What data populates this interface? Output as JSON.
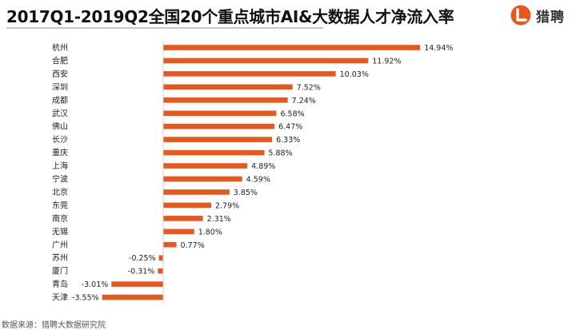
{
  "header": {
    "title": "2017Q1-2019Q2全国20个重点城市AI&大数据人才净流入率",
    "brand_name": "猎聘",
    "brand_icon": "liepin-logo-icon"
  },
  "footer": {
    "source": "数据来源：猎聘大数据研究院"
  },
  "colors": {
    "bar": "#e8581c",
    "brand": "#e8581c",
    "text": "#222222"
  },
  "chart_data": {
    "type": "bar",
    "orientation": "horizontal",
    "title": "2017Q1-2019Q2全国20个重点城市AI&大数据人才净流入率",
    "xlabel": "",
    "ylabel": "",
    "grid": false,
    "legend": "none",
    "categories": [
      "杭州",
      "合肥",
      "西安",
      "深圳",
      "成都",
      "武汉",
      "佛山",
      "长沙",
      "重庆",
      "上海",
      "宁波",
      "北京",
      "东莞",
      "南京",
      "无锡",
      "广州",
      "苏州",
      "厦门",
      "青岛",
      "天津"
    ],
    "values": [
      14.94,
      11.92,
      10.03,
      7.52,
      7.24,
      6.58,
      6.47,
      6.33,
      5.88,
      4.89,
      4.59,
      3.85,
      2.79,
      2.31,
      1.8,
      0.77,
      -0.25,
      -0.31,
      -3.01,
      -3.55
    ],
    "data_labels": [
      "14.94%",
      "11.92%",
      "10.03%",
      "7.52%",
      "7.24%",
      "6.58%",
      "6.47%",
      "6.33%",
      "5.88%",
      "4.89%",
      "4.59%",
      "3.85%",
      "2.79%",
      "2.31%",
      "1.80%",
      "0.77%",
      "-0.25%",
      "-0.31%",
      "-3.01%",
      "-3.55%"
    ],
    "xlim": [
      -4,
      15
    ],
    "unit": "%"
  }
}
